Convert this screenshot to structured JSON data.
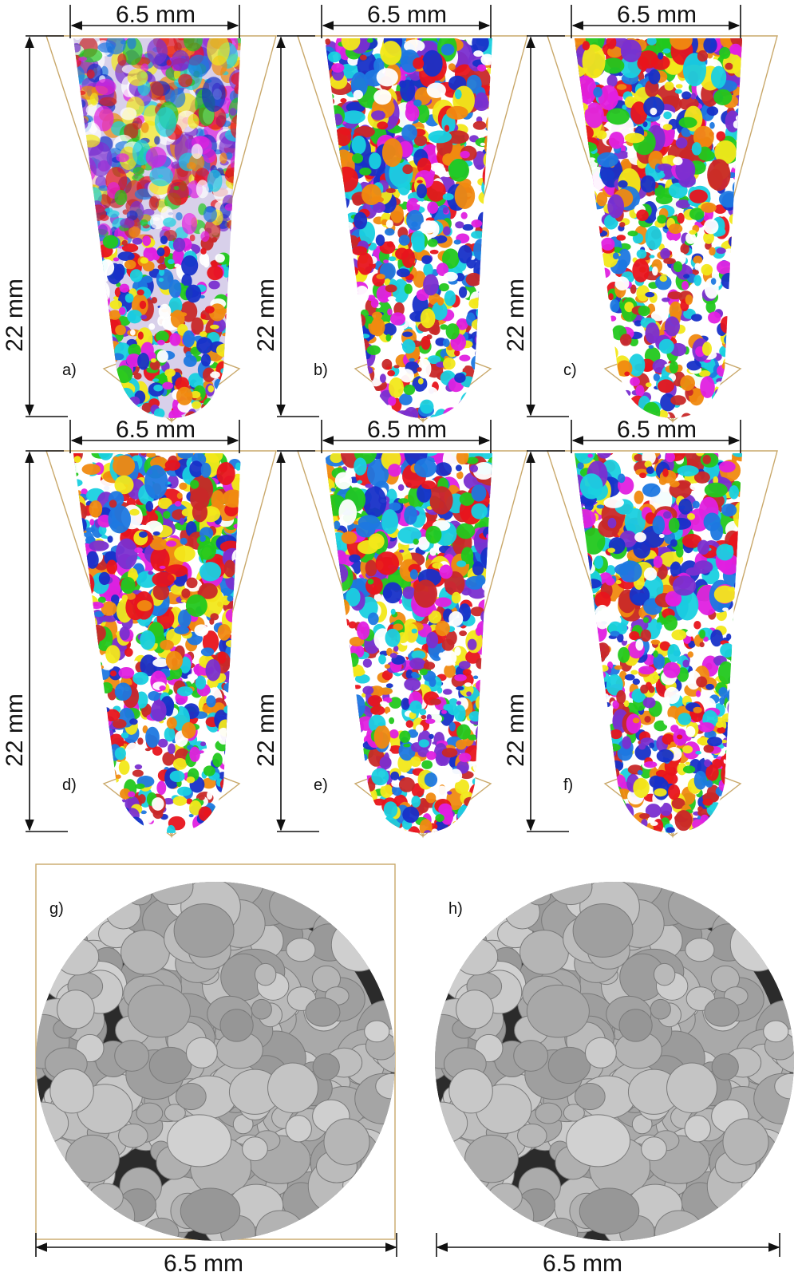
{
  "panels": [
    {
      "label": "a)",
      "width_label": "6.5 mm",
      "height_label": "22 mm"
    },
    {
      "label": "b)",
      "width_label": "6.5 mm",
      "height_label": "22 mm"
    },
    {
      "label": "c)",
      "width_label": "6.5 mm",
      "height_label": "22 mm"
    },
    {
      "label": "d)",
      "width_label": "6.5 mm",
      "height_label": "22 mm"
    },
    {
      "label": "e)",
      "width_label": "6.5 mm",
      "height_label": "22 mm"
    },
    {
      "label": "f)",
      "width_label": "6.5 mm",
      "height_label": "22 mm"
    }
  ],
  "slices": [
    {
      "label": "g)",
      "width_label": "6.5 mm"
    },
    {
      "label": "h)",
      "width_label": "6.5 mm"
    }
  ]
}
